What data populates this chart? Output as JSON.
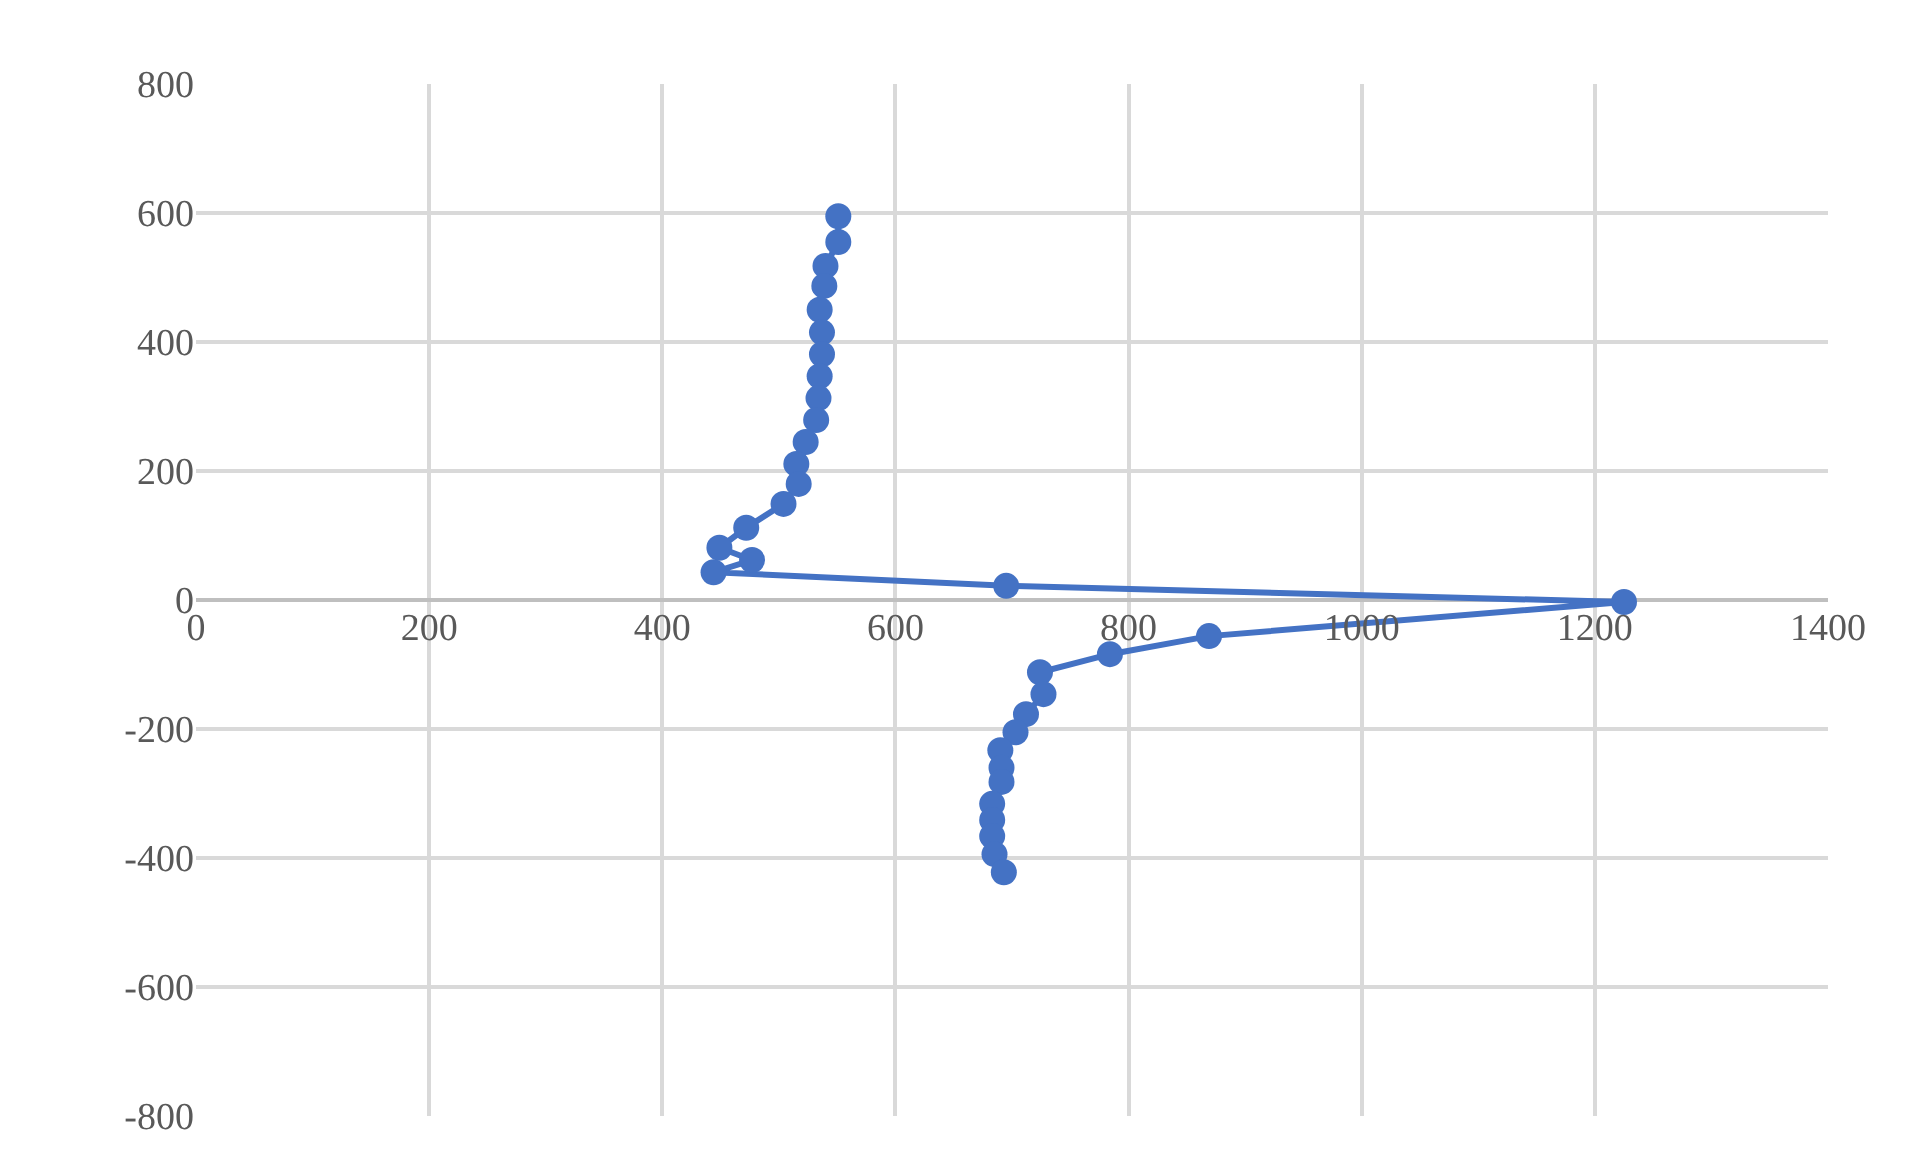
{
  "chart_data": {
    "type": "line",
    "marker": "circle",
    "line_style": "solid",
    "grid": true,
    "xlim": [
      0,
      1400
    ],
    "xticks": [
      0,
      200,
      400,
      600,
      800,
      1000,
      1200,
      1400
    ],
    "ylim": [
      -800,
      800
    ],
    "yticks": [
      -800,
      -600,
      -400,
      -200,
      0,
      200,
      400,
      600,
      800
    ],
    "series": [
      {
        "color": "#4472c4",
        "x": [
          551,
          551,
          540,
          539,
          535,
          537,
          537,
          535,
          534,
          532,
          523,
          515,
          517,
          504,
          472,
          449,
          477,
          444,
          695,
          1225,
          869,
          784,
          724,
          727,
          712,
          703,
          690,
          691,
          691,
          683,
          683,
          683,
          685,
          693
        ],
        "values": [
          595,
          555,
          518,
          487,
          450,
          415,
          381,
          347,
          313,
          279,
          245,
          211,
          180,
          149,
          112,
          81,
          62,
          43,
          22,
          -3,
          -56,
          -84,
          -112,
          -146,
          -177,
          -205,
          -233,
          -260,
          -282,
          -316,
          -341,
          -366,
          -394,
          -422
        ]
      }
    ]
  }
}
